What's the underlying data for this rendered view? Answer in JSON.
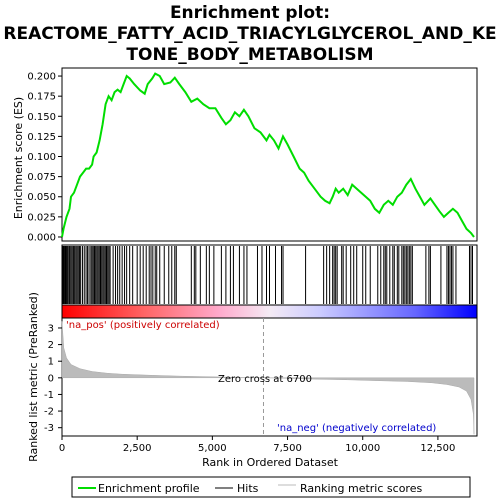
{
  "chart_data": {
    "type": "line",
    "title_lines": [
      "Enrichment plot:",
      "REACTOME_FATTY_ACID_TRIACYLGLYCEROL_AND_KE",
      "TONE_BODY_METABOLISM"
    ],
    "es_ylabel": "Enrichment score (ES)",
    "es_ylim": [
      -0.005,
      0.21
    ],
    "es_yticks": [
      "0.000",
      "0.025",
      "0.050",
      "0.075",
      "0.100",
      "0.125",
      "0.150",
      "0.175",
      "0.200"
    ],
    "es_tick_values": [
      0,
      0.025,
      0.05,
      0.075,
      0.1,
      0.125,
      0.15,
      0.175,
      0.2
    ],
    "metric_ylabel": "Ranked list metric (PreRanked)",
    "metric_ylim": [
      -3.5,
      3.6
    ],
    "metric_yticks": [
      "3",
      "2",
      "1",
      "0",
      "-1",
      "-2",
      "-3"
    ],
    "metric_tick_values": [
      3,
      2,
      1,
      0,
      -1,
      -2,
      -3
    ],
    "xlabel": "Rank in Ordered Dataset",
    "xlim": [
      0,
      13800
    ],
    "xticks": [
      "0",
      "2,500",
      "5,000",
      "7,500",
      "10,000",
      "12,500"
    ],
    "xtick_values": [
      0,
      2500,
      5000,
      7500,
      10000,
      12500
    ],
    "zero_cross_label": "Zero cross at 6700",
    "zero_cross": 6700,
    "pos_label": "'na_pos' (positively correlated)",
    "neg_label": "'na_neg' (negatively correlated)",
    "es_curve": [
      [
        0,
        0
      ],
      [
        50,
        0.01
      ],
      [
        150,
        0.025
      ],
      [
        250,
        0.035
      ],
      [
        300,
        0.05
      ],
      [
        400,
        0.055
      ],
      [
        500,
        0.065
      ],
      [
        600,
        0.075
      ],
      [
        700,
        0.08
      ],
      [
        800,
        0.085
      ],
      [
        900,
        0.085
      ],
      [
        1000,
        0.09
      ],
      [
        1050,
        0.1
      ],
      [
        1150,
        0.105
      ],
      [
        1250,
        0.12
      ],
      [
        1350,
        0.14
      ],
      [
        1450,
        0.165
      ],
      [
        1550,
        0.175
      ],
      [
        1650,
        0.17
      ],
      [
        1750,
        0.18
      ],
      [
        1850,
        0.183
      ],
      [
        1950,
        0.18
      ],
      [
        2050,
        0.19
      ],
      [
        2150,
        0.2
      ],
      [
        2250,
        0.197
      ],
      [
        2400,
        0.19
      ],
      [
        2600,
        0.182
      ],
      [
        2750,
        0.178
      ],
      [
        2850,
        0.19
      ],
      [
        3000,
        0.197
      ],
      [
        3100,
        0.203
      ],
      [
        3250,
        0.2
      ],
      [
        3400,
        0.19
      ],
      [
        3600,
        0.192
      ],
      [
        3750,
        0.198
      ],
      [
        3900,
        0.19
      ],
      [
        4100,
        0.18
      ],
      [
        4300,
        0.168
      ],
      [
        4500,
        0.172
      ],
      [
        4700,
        0.165
      ],
      [
        4900,
        0.16
      ],
      [
        5100,
        0.16
      ],
      [
        5300,
        0.148
      ],
      [
        5450,
        0.14
      ],
      [
        5600,
        0.145
      ],
      [
        5750,
        0.155
      ],
      [
        5900,
        0.15
      ],
      [
        6050,
        0.158
      ],
      [
        6200,
        0.15
      ],
      [
        6400,
        0.135
      ],
      [
        6600,
        0.13
      ],
      [
        6800,
        0.12
      ],
      [
        6900,
        0.127
      ],
      [
        7050,
        0.12
      ],
      [
        7200,
        0.11
      ],
      [
        7350,
        0.125
      ],
      [
        7500,
        0.115
      ],
      [
        7700,
        0.1
      ],
      [
        7900,
        0.085
      ],
      [
        8050,
        0.08
      ],
      [
        8200,
        0.07
      ],
      [
        8400,
        0.06
      ],
      [
        8600,
        0.05
      ],
      [
        8750,
        0.045
      ],
      [
        8900,
        0.042
      ],
      [
        9000,
        0.05
      ],
      [
        9100,
        0.06
      ],
      [
        9200,
        0.055
      ],
      [
        9350,
        0.06
      ],
      [
        9500,
        0.052
      ],
      [
        9650,
        0.065
      ],
      [
        9800,
        0.06
      ],
      [
        9950,
        0.055
      ],
      [
        10100,
        0.05
      ],
      [
        10250,
        0.045
      ],
      [
        10400,
        0.035
      ],
      [
        10550,
        0.03
      ],
      [
        10700,
        0.04
      ],
      [
        10850,
        0.045
      ],
      [
        11000,
        0.04
      ],
      [
        11150,
        0.05
      ],
      [
        11300,
        0.055
      ],
      [
        11450,
        0.065
      ],
      [
        11600,
        0.072
      ],
      [
        11750,
        0.06
      ],
      [
        11900,
        0.05
      ],
      [
        12050,
        0.04
      ],
      [
        12250,
        0.048
      ],
      [
        12400,
        0.04
      ],
      [
        12550,
        0.032
      ],
      [
        12700,
        0.025
      ],
      [
        12850,
        0.03
      ],
      [
        13000,
        0.035
      ],
      [
        13150,
        0.03
      ],
      [
        13300,
        0.02
      ],
      [
        13450,
        0.01
      ],
      [
        13600,
        0.005
      ],
      [
        13700,
        0
      ]
    ],
    "hits": [
      20,
      40,
      60,
      80,
      110,
      130,
      160,
      190,
      230,
      260,
      300,
      340,
      380,
      420,
      460,
      500,
      540,
      580,
      620,
      680,
      740,
      800,
      850,
      900,
      960,
      1000,
      1040,
      1080,
      1120,
      1160,
      1200,
      1240,
      1280,
      1320,
      1360,
      1400,
      1440,
      1480,
      1520,
      1560,
      1600,
      1700,
      1780,
      1850,
      1920,
      2000,
      2080,
      2150,
      2250,
      2350,
      2500,
      2600,
      2700,
      2800,
      2900,
      2960,
      3020,
      3100,
      3150,
      3250,
      3400,
      3550,
      3650,
      3750,
      3800,
      4300,
      4400,
      4450,
      4600,
      4800,
      4900,
      5050,
      5300,
      5450,
      5600,
      5700,
      5900,
      6050,
      6150,
      6500,
      6650,
      6800,
      6900,
      7100,
      7300,
      7350,
      8100,
      8700,
      8800,
      8900,
      9000,
      9050,
      9100,
      9150,
      9300,
      9350,
      9450,
      9600,
      9700,
      9800,
      10000,
      10100,
      10250,
      10500,
      10600,
      10700,
      10750,
      10800,
      10900,
      11000,
      11050,
      11150,
      11200,
      11300,
      11350,
      11400,
      11450,
      11500,
      11550,
      11600,
      11650,
      12100,
      12200,
      12250,
      12600,
      12800,
      12850,
      12900,
      12950,
      13000,
      13100,
      13550,
      13600,
      13650
    ],
    "metric_profile": [
      [
        0,
        3.4
      ],
      [
        60,
        1.8
      ],
      [
        150,
        1.2
      ],
      [
        300,
        0.8
      ],
      [
        600,
        0.55
      ],
      [
        1000,
        0.38
      ],
      [
        1500,
        0.28
      ],
      [
        2000,
        0.22
      ],
      [
        3000,
        0.15
      ],
      [
        4000,
        0.1
      ],
      [
        5000,
        0.06
      ],
      [
        6000,
        0.02
      ],
      [
        6700,
        0
      ],
      [
        7500,
        -0.03
      ],
      [
        8500,
        -0.08
      ],
      [
        9500,
        -0.12
      ],
      [
        10500,
        -0.17
      ],
      [
        11500,
        -0.22
      ],
      [
        12300,
        -0.3
      ],
      [
        12800,
        -0.4
      ],
      [
        13200,
        -0.55
      ],
      [
        13450,
        -0.8
      ],
      [
        13600,
        -1.3
      ],
      [
        13680,
        -2.2
      ],
      [
        13700,
        -3.4
      ]
    ],
    "legend": [
      "Enrichment profile",
      "Hits",
      "Ranking metric scores"
    ],
    "colors": {
      "es_line": "#00dd00",
      "hits": "#000000",
      "metric_fill": "#bbbbbb",
      "pos_text": "#cc0000",
      "neg_text": "#0000cc",
      "gradient_pos": "#ff0000",
      "gradient_mid": "#ffffff",
      "gradient_neg": "#0000ff",
      "zero_line": "#999999"
    }
  }
}
